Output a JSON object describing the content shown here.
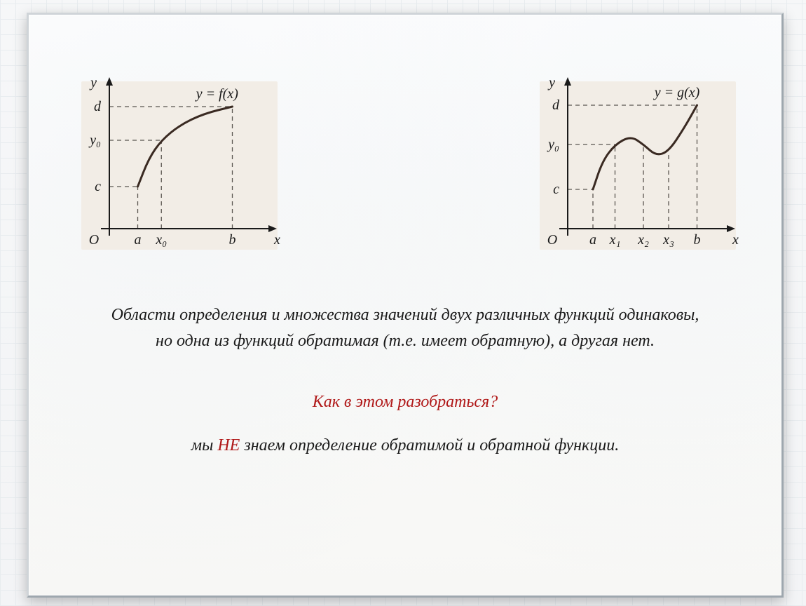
{
  "paragraph": "Области определения и множества значений двух различных функций одинаковы, но одна из функций обратимая (т.е. имеет обратную), а другая нет.",
  "question": "Как в этом разобраться?",
  "answer_pre": "мы ",
  "answer_neg": "НЕ",
  "answer_post": " знаем определение обратимой и обратной функции.",
  "chart_left": {
    "type": "line",
    "title": "y = f(x)",
    "axis_y_label": "y",
    "axis_x_label": "x",
    "origin_label": "O",
    "x_ticks": [
      "a",
      "x₀",
      "b"
    ],
    "y_ticks": [
      "c",
      "y₀",
      "d"
    ],
    "curve_color": "#3a2a22",
    "axis_color": "#1a1a1a",
    "dash_color": "#5a5650",
    "background": "#f2ede6",
    "line_width": 3,
    "curve": [
      [
        0.18,
        0.3
      ],
      [
        0.25,
        0.5
      ],
      [
        0.33,
        0.63
      ],
      [
        0.45,
        0.74
      ],
      [
        0.6,
        0.82
      ],
      [
        0.78,
        0.87
      ]
    ],
    "x_tick_pos": [
      0.18,
      0.33,
      0.78
    ],
    "y_tick_pos": [
      0.3,
      0.63,
      0.87
    ]
  },
  "chart_right": {
    "type": "line",
    "title": "y = g(x)",
    "axis_y_label": "y",
    "axis_x_label": "x",
    "origin_label": "O",
    "x_ticks": [
      "a",
      "x₁",
      "x₂",
      "x₃",
      "b"
    ],
    "y_ticks": [
      "c",
      "y₀",
      "d"
    ],
    "curve_color": "#3a2a22",
    "axis_color": "#1a1a1a",
    "dash_color": "#5a5650",
    "background": "#f2ede6",
    "line_width": 3,
    "curve": [
      [
        0.16,
        0.28
      ],
      [
        0.22,
        0.48
      ],
      [
        0.3,
        0.6
      ],
      [
        0.4,
        0.66
      ],
      [
        0.48,
        0.6
      ],
      [
        0.56,
        0.52
      ],
      [
        0.64,
        0.55
      ],
      [
        0.74,
        0.72
      ],
      [
        0.82,
        0.88
      ]
    ],
    "x_tick_pos": [
      0.16,
      0.3,
      0.48,
      0.64,
      0.82
    ],
    "y_tick_pos": [
      0.28,
      0.6,
      0.88
    ]
  },
  "font_sizes": {
    "body": 24,
    "axis": 20,
    "title": 20
  }
}
